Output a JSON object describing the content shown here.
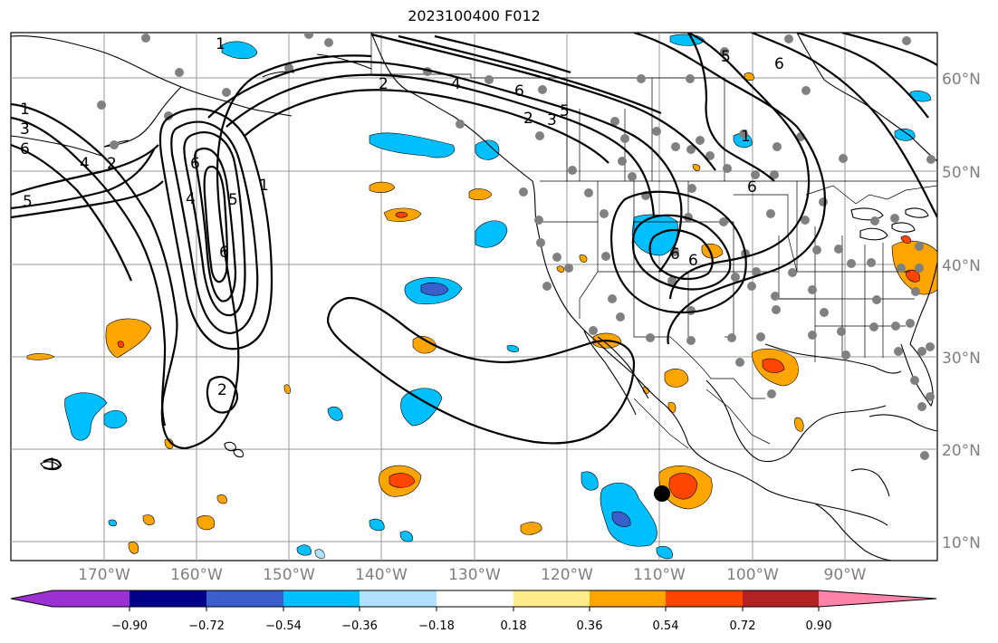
{
  "title": "2023100400 F012",
  "map": {
    "lat_labels": [
      "60°N",
      "50°N",
      "40°N",
      "30°N",
      "20°N",
      "10°N"
    ],
    "lon_labels": [
      "170°W",
      "160°W",
      "150°W",
      "140°W",
      "130°W",
      "120°W",
      "110°W",
      "100°W",
      "90°W"
    ],
    "contour_labels": [
      "1",
      "3",
      "6",
      "4",
      "2",
      "5",
      "6",
      "1",
      "4",
      "5",
      "6",
      "2",
      "1",
      "2",
      "4",
      "6",
      "5",
      "2",
      "3",
      "6",
      "5",
      "6",
      "6",
      "6",
      "1",
      "1"
    ]
  },
  "colorbar": {
    "colors": [
      "#9b30d3",
      "#00008b",
      "#3a5fcd",
      "#00bfff",
      "#b0e2ff",
      "#ffffff",
      "#ffec8b",
      "#ffa500",
      "#ff4500",
      "#b22222",
      "#ff82ab"
    ],
    "tick_labels": [
      "−0.90",
      "−0.72",
      "−0.54",
      "−0.36",
      "−0.18",
      "0.18",
      "0.36",
      "0.54",
      "0.72",
      "0.90"
    ]
  }
}
